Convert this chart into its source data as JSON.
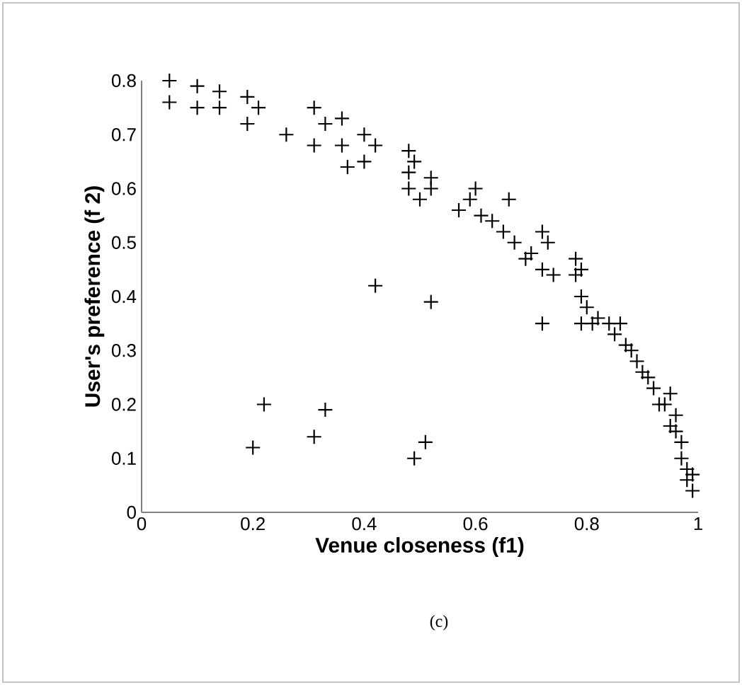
{
  "chart_data": {
    "type": "scatter",
    "xlabel": "Venue closeness (f1)",
    "ylabel": "User's preference (f 2)",
    "annotations": [
      "(c)"
    ],
    "marker": "cross",
    "grid": false,
    "xlim": [
      0,
      1
    ],
    "ylim": [
      0,
      0.8
    ],
    "xticks": [
      0,
      0.2,
      0.4,
      0.6,
      0.8,
      1
    ],
    "yticks": [
      0,
      0.1,
      0.2,
      0.3,
      0.4,
      0.5,
      0.6,
      0.7,
      0.8
    ],
    "series": [
      {
        "color": "#000000",
        "x": [
          0.05,
          0.05,
          0.1,
          0.1,
          0.14,
          0.14,
          0.19,
          0.19,
          0.21,
          0.26,
          0.31,
          0.31,
          0.33,
          0.36,
          0.36,
          0.37,
          0.4,
          0.4,
          0.42,
          0.48,
          0.48,
          0.48,
          0.49,
          0.5,
          0.52,
          0.52,
          0.57,
          0.59,
          0.6,
          0.61,
          0.63,
          0.65,
          0.66,
          0.67,
          0.69,
          0.7,
          0.72,
          0.72,
          0.73,
          0.74,
          0.78,
          0.78,
          0.79,
          0.79,
          0.8,
          0.81,
          0.82,
          0.84,
          0.85,
          0.86,
          0.87,
          0.88,
          0.89,
          0.9,
          0.91,
          0.92,
          0.93,
          0.94,
          0.95,
          0.96,
          0.96,
          0.97,
          0.97,
          0.98,
          0.98,
          0.99,
          0.99,
          0.95,
          0.42,
          0.52,
          0.72,
          0.79,
          0.22,
          0.2,
          0.33,
          0.31,
          0.49,
          0.51
        ],
        "values": [
          0.8,
          0.76,
          0.79,
          0.75,
          0.78,
          0.75,
          0.77,
          0.72,
          0.75,
          0.7,
          0.75,
          0.68,
          0.72,
          0.73,
          0.68,
          0.64,
          0.7,
          0.65,
          0.68,
          0.67,
          0.63,
          0.6,
          0.65,
          0.58,
          0.62,
          0.6,
          0.56,
          0.58,
          0.6,
          0.55,
          0.54,
          0.52,
          0.58,
          0.5,
          0.47,
          0.48,
          0.52,
          0.45,
          0.5,
          0.44,
          0.47,
          0.44,
          0.45,
          0.4,
          0.38,
          0.35,
          0.36,
          0.35,
          0.33,
          0.35,
          0.31,
          0.3,
          0.28,
          0.26,
          0.25,
          0.23,
          0.2,
          0.2,
          0.22,
          0.18,
          0.15,
          0.13,
          0.1,
          0.08,
          0.06,
          0.04,
          0.07,
          0.16,
          0.42,
          0.39,
          0.35,
          0.35,
          0.2,
          0.12,
          0.19,
          0.14,
          0.1,
          0.13
        ]
      }
    ]
  }
}
